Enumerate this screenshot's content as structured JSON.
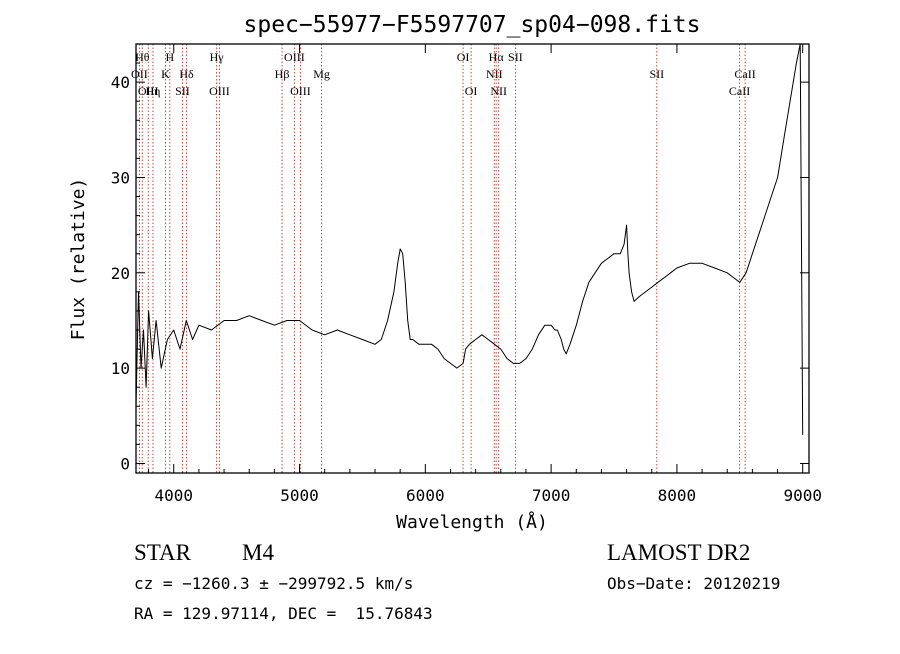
{
  "chart_data": {
    "type": "line",
    "title": "spec−55977−F5597707_sp04−098.fits",
    "xlabel": "Wavelength (Å)",
    "ylabel": "Flux (relative)",
    "xlim": [
      3700,
      9050
    ],
    "ylim": [
      -1,
      44
    ],
    "xticks": [
      4000,
      5000,
      6000,
      7000,
      8000,
      9000
    ],
    "yticks": [
      0,
      10,
      20,
      30,
      40
    ],
    "grid": false,
    "series": [
      {
        "x": [
          3700,
          3720,
          3740,
          3760,
          3780,
          3800,
          3830,
          3860,
          3900,
          3950,
          4000,
          4050,
          4100,
          4150,
          4200,
          4300,
          4400,
          4500,
          4600,
          4700,
          4800,
          4900,
          5000,
          5100,
          5200,
          5300,
          5400,
          5500,
          5600,
          5650,
          5700,
          5750,
          5780,
          5800,
          5820,
          5840,
          5860,
          5880,
          5900,
          5950,
          6000,
          6050,
          6100,
          6150,
          6200,
          6250,
          6300,
          6320,
          6350,
          6400,
          6450,
          6500,
          6550,
          6600,
          6650,
          6700,
          6750,
          6800,
          6850,
          6900,
          6950,
          7000,
          7030,
          7050,
          7080,
          7100,
          7120,
          7150,
          7200,
          7250,
          7300,
          7350,
          7400,
          7450,
          7500,
          7550,
          7580,
          7600,
          7610,
          7620,
          7640,
          7660,
          7700,
          7750,
          7800,
          7850,
          7900,
          7950,
          8000,
          8100,
          8200,
          8300,
          8400,
          8450,
          8500,
          8550,
          8600,
          8650,
          8700,
          8750,
          8800,
          8850,
          8900,
          8950,
          8980,
          9000
        ],
        "y": [
          6,
          18,
          10,
          14,
          8,
          16,
          11,
          15,
          10,
          13,
          14,
          12,
          15,
          13,
          14.5,
          14,
          15,
          15,
          15.5,
          15,
          14.5,
          15,
          15,
          14,
          13.5,
          14,
          13.5,
          13,
          12.5,
          13,
          15,
          18,
          21,
          22.5,
          22,
          19,
          15,
          13,
          13,
          12.5,
          12.5,
          12.5,
          12,
          11,
          10.5,
          10,
          10.5,
          12,
          12.5,
          13,
          13.5,
          13,
          12.5,
          12,
          11,
          10.5,
          10.5,
          11,
          12,
          13.5,
          14.5,
          14.5,
          14,
          14,
          13,
          12,
          11.5,
          12.5,
          14.5,
          17,
          19,
          20,
          21,
          21.5,
          22,
          22,
          23,
          25,
          22,
          20,
          18,
          17,
          17.5,
          18,
          18.5,
          19,
          19.5,
          20,
          20.5,
          21,
          21,
          20.5,
          20,
          19.5,
          19,
          20,
          22,
          24,
          26,
          28,
          30,
          34,
          38,
          42,
          44,
          3
        ]
      }
    ],
    "line_markers": [
      {
        "wavelength": 3727,
        "label": "OII",
        "row": 2
      },
      {
        "wavelength": 3750,
        "label": "Hθ",
        "row": 1
      },
      {
        "wavelength": 3797,
        "label": "OIII",
        "row": 3
      },
      {
        "wavelength": 3835,
        "label": "Hη",
        "row": 3
      },
      {
        "wavelength": 3934,
        "label": "K",
        "row": 2
      },
      {
        "wavelength": 3969,
        "label": "H",
        "row": 1
      },
      {
        "wavelength": 4069,
        "label": "SII",
        "row": 3
      },
      {
        "wavelength": 4102,
        "label": "Hδ",
        "row": 2
      },
      {
        "wavelength": 4341,
        "label": "Hγ",
        "row": 1
      },
      {
        "wavelength": 4363,
        "label": "OIII",
        "row": 3
      },
      {
        "wavelength": 4861,
        "label": "Hβ",
        "row": 2
      },
      {
        "wavelength": 4959,
        "label": "OIII",
        "row": 1
      },
      {
        "wavelength": 5007,
        "label": "OIII",
        "row": 3
      },
      {
        "wavelength": 5175,
        "label": "Mg",
        "row": 2
      },
      {
        "wavelength": 6300,
        "label": "OI",
        "row": 1
      },
      {
        "wavelength": 6364,
        "label": "OI",
        "row": 3
      },
      {
        "wavelength": 6548,
        "label": "NII",
        "row": 2
      },
      {
        "wavelength": 6563,
        "label": "Hα",
        "row": 1
      },
      {
        "wavelength": 6583,
        "label": "NII",
        "row": 3
      },
      {
        "wavelength": 6716,
        "label": "SII",
        "row": 1
      },
      {
        "wavelength": 7840,
        "label": "SII",
        "row": 2
      },
      {
        "wavelength": 8498,
        "label": "CaII",
        "row": 3
      },
      {
        "wavelength": 8542,
        "label": "CaII",
        "row": 2
      }
    ]
  },
  "info": {
    "object_class": "STAR",
    "subclass": "M4",
    "survey": "LAMOST DR2",
    "cz_line": "cz = −1260.3 ± −299792.5 km/s",
    "radec_line": "RA = 129.97114, DEC =  15.76843",
    "obs_date_line": "Obs−Date: 20120219"
  },
  "colors": {
    "spectrum": "#000000",
    "marker_line": "#b03a2e",
    "axis": "#000000"
  }
}
